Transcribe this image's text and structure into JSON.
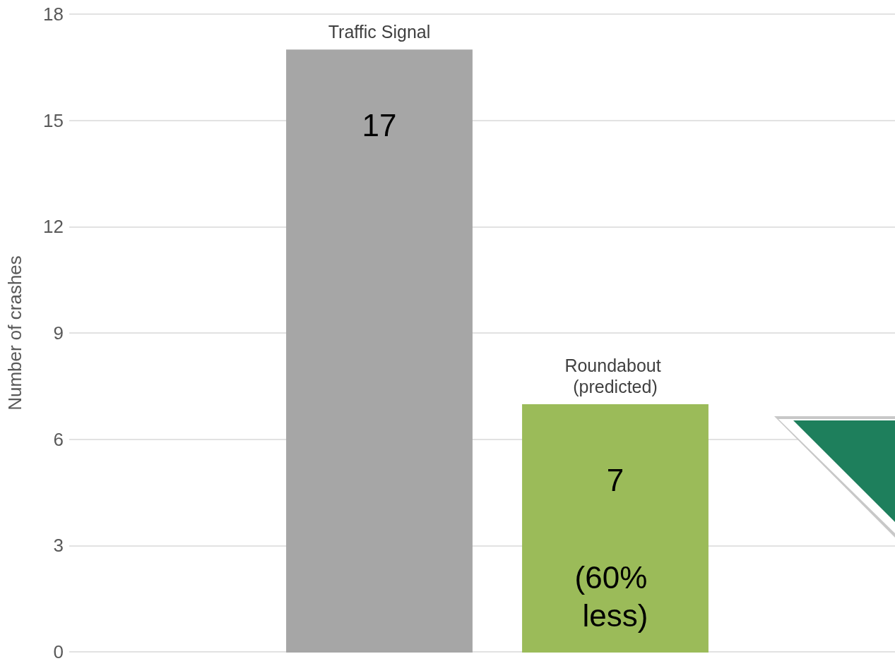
{
  "chart_data": {
    "type": "bar",
    "ylabel": "Number of crashes",
    "categories": [
      "Traffic Signal",
      "Roundabout (predicted)"
    ],
    "values": [
      17,
      7
    ],
    "colors": [
      "#a6a6a6",
      "#9bbb59"
    ],
    "data_labels": true,
    "annotations": [
      "(60% less)"
    ],
    "ylim": [
      0,
      18
    ],
    "yticks": [
      0,
      3,
      6,
      9,
      12,
      15,
      18
    ],
    "grid": "y"
  }
}
